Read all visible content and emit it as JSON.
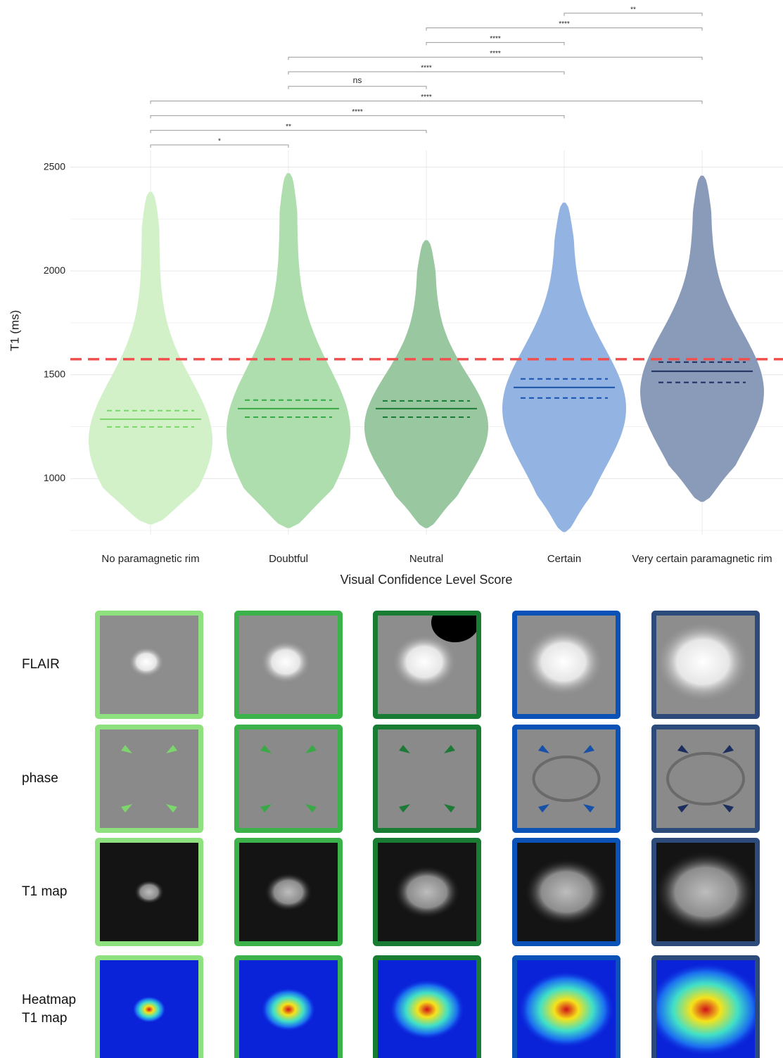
{
  "chart_data": {
    "type": "violin",
    "x_label": "Visual Confidence Level Score",
    "y_label": "T1 (ms)",
    "categories": [
      "No paramagnetic rim",
      "Doubtful",
      "Neutral",
      "Certain",
      "Very certain paramagnetic rim"
    ],
    "fill_colors": [
      "#d3f1c9",
      "#afdeae",
      "#98c7a0",
      "#93b4e2",
      "#8a9bb9"
    ],
    "line_colors": [
      "#7dd56d",
      "#38a946",
      "#1d7a36",
      "#1650a8",
      "#1b2e5e"
    ],
    "stats": [
      {
        "min": 779,
        "q1": 1249,
        "median": 1286,
        "q3": 1327,
        "max": 2381
      },
      {
        "min": 762,
        "q1": 1296,
        "median": 1337,
        "q3": 1378,
        "max": 2471
      },
      {
        "min": 762,
        "q1": 1296,
        "median": 1337,
        "q3": 1374,
        "max": 2148
      },
      {
        "min": 743,
        "q1": 1388,
        "median": 1439,
        "q3": 1480,
        "max": 2329
      },
      {
        "min": 888,
        "q1": 1463,
        "median": 1517,
        "q3": 1561,
        "max": 2459
      }
    ],
    "reference_line": {
      "value": 1575,
      "color": "#f0504e"
    },
    "ylim": [
      730,
      2580
    ],
    "yticks": [
      1000,
      1500,
      2000,
      2500
    ],
    "minor_yticks": [
      750,
      1250,
      1750,
      2250
    ],
    "grid": true,
    "comparisons": [
      {
        "from": "No paramagnetic rim",
        "to": "Doubtful",
        "label": "*"
      },
      {
        "from": "No paramagnetic rim",
        "to": "Neutral",
        "label": "**"
      },
      {
        "from": "No paramagnetic rim",
        "to": "Certain",
        "label": "****"
      },
      {
        "from": "No paramagnetic rim",
        "to": "Very certain paramagnetic rim",
        "label": "****"
      },
      {
        "from": "Doubtful",
        "to": "Neutral",
        "label": "ns"
      },
      {
        "from": "Doubtful",
        "to": "Certain",
        "label": "****"
      },
      {
        "from": "Doubtful",
        "to": "Very certain paramagnetic rim",
        "label": "****"
      },
      {
        "from": "Neutral",
        "to": "Certain",
        "label": "****"
      },
      {
        "from": "Neutral",
        "to": "Very certain paramagnetic rim",
        "label": "****"
      },
      {
        "from": "Certain",
        "to": "Very certain paramagnetic rim",
        "label": "**"
      }
    ]
  },
  "image_grid": {
    "rows": [
      "FLAIR",
      "phase",
      "T1 map",
      "Heatmap T1 map"
    ],
    "frame_colors": [
      "#8fe07f",
      "#3cb34a",
      "#187c33",
      "#0b52b8",
      "#2c4a7a"
    ]
  }
}
